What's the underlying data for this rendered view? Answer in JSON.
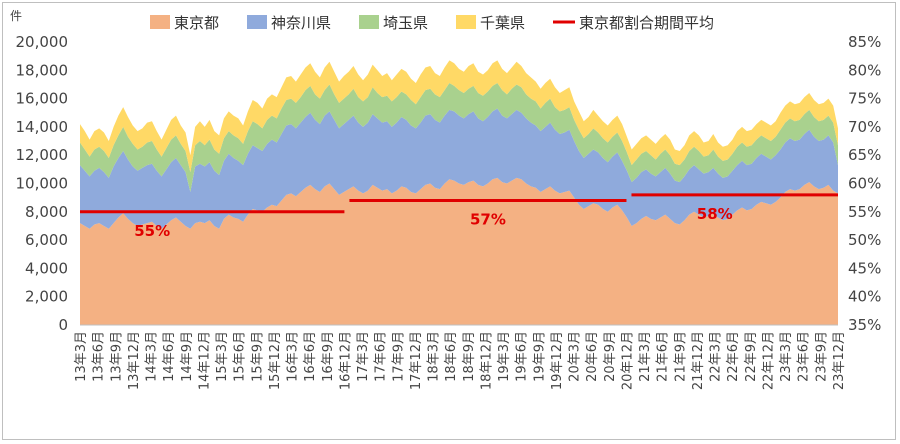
{
  "chart_data": {
    "type": "area",
    "stacked": true,
    "unit_label": "件",
    "yticks_left": [
      "0",
      "2,000",
      "4,000",
      "6,000",
      "8,000",
      "10,000",
      "12,000",
      "14,000",
      "16,000",
      "18,000",
      "20,000"
    ],
    "yticks_right": [
      "35%",
      "40%",
      "45%",
      "50%",
      "55%",
      "60%",
      "65%",
      "70%",
      "75%",
      "80%",
      "85%"
    ],
    "ylim_left": [
      0,
      20000
    ],
    "ylim_right": [
      0.35,
      0.85
    ],
    "x_tick_labels": [
      "13年3月",
      "13年6月",
      "13年9月",
      "13年12月",
      "14年3月",
      "14年6月",
      "14年9月",
      "14年12月",
      "15年3月",
      "15年6月",
      "15年9月",
      "15年12月",
      "16年3月",
      "16年6月",
      "16年9月",
      "16年12月",
      "17年3月",
      "17年6月",
      "17年9月",
      "17年12月",
      "18年3月",
      "18年6月",
      "18年9月",
      "18年12月",
      "19年3月",
      "19年6月",
      "19年9月",
      "19年12月",
      "20年3月",
      "20年6月",
      "20年9月",
      "20年12月",
      "21年3月",
      "21年6月",
      "21年9月",
      "21年12月",
      "22年3月",
      "22年6月",
      "22年9月",
      "22年12月",
      "23年3月",
      "23年6月",
      "23年9月",
      "23年12月"
    ],
    "legend_position": "top",
    "series": [
      {
        "name": "東京都",
        "color": "#f4b183",
        "values": [
          7200,
          7000,
          6800,
          7100,
          7200,
          7000,
          6800,
          7200,
          7600,
          7900,
          7500,
          7200,
          7000,
          7100,
          7200,
          7300,
          7000,
          6800,
          7100,
          7400,
          7600,
          7300,
          7000,
          6800,
          7200,
          7300,
          7200,
          7400,
          7000,
          6800,
          7500,
          7800,
          7600,
          7500,
          7300,
          7800,
          8200,
          8100,
          8000,
          8300,
          8500,
          8400,
          8800,
          9200,
          9300,
          9100,
          9400,
          9700,
          9900,
          9600,
          9400,
          9800,
          10000,
          9600,
          9200,
          9400,
          9600,
          9800,
          9500,
          9300,
          9500,
          9900,
          9700,
          9500,
          9600,
          9300,
          9500,
          9800,
          9700,
          9400,
          9300,
          9600,
          9900,
          10000,
          9700,
          9600,
          10000,
          10300,
          10200,
          10000,
          9900,
          10100,
          10200,
          9900,
          9800,
          10000,
          10300,
          10400,
          10100,
          10000,
          10200,
          10400,
          10300,
          10000,
          9800,
          9700,
          9400,
          9600,
          9800,
          9500,
          9300,
          9400,
          9500,
          9000,
          8500,
          8200,
          8400,
          8600,
          8500,
          8200,
          8000,
          8300,
          8500,
          8100,
          7600,
          7000,
          7200,
          7500,
          7700,
          7500,
          7400,
          7600,
          7800,
          7500,
          7200,
          7100,
          7400,
          7800,
          8000,
          7800,
          7600,
          7700,
          7900,
          7600,
          7400,
          7500,
          7800,
          8100,
          8300,
          8100,
          8200,
          8500,
          8700,
          8600,
          8500,
          8700,
          9000,
          9400,
          9600,
          9500,
          9600,
          9900,
          10100,
          9800,
          9600,
          9700,
          9900,
          9500,
          9300
        ]
      },
      {
        "name": "神奈川県",
        "color": "#8faadc",
        "values": [
          4100,
          3900,
          3700,
          3800,
          3900,
          3800,
          3600,
          4000,
          4200,
          4400,
          4200,
          4000,
          3900,
          4000,
          4100,
          4100,
          3900,
          3700,
          3900,
          4100,
          4200,
          4000,
          3800,
          2600,
          4000,
          4100,
          4000,
          4100,
          3900,
          3800,
          4100,
          4300,
          4200,
          4100,
          4000,
          4300,
          4500,
          4400,
          4300,
          4500,
          4600,
          4500,
          4700,
          4900,
          4900,
          4800,
          4900,
          5000,
          5100,
          4900,
          4800,
          5000,
          5100,
          4900,
          4700,
          4800,
          4900,
          5000,
          4800,
          4700,
          4800,
          5000,
          4900,
          4800,
          4800,
          4700,
          4800,
          4900,
          4800,
          4700,
          4600,
          4700,
          4900,
          4900,
          4800,
          4700,
          4800,
          4900,
          4900,
          4800,
          4700,
          4800,
          4900,
          4700,
          4600,
          4700,
          4800,
          4900,
          4700,
          4600,
          4700,
          4800,
          4700,
          4600,
          4500,
          4400,
          4300,
          4400,
          4500,
          4300,
          4200,
          4200,
          4300,
          4000,
          3800,
          3600,
          3700,
          3800,
          3700,
          3600,
          3500,
          3600,
          3700,
          3500,
          3300,
          3100,
          3200,
          3300,
          3300,
          3200,
          3100,
          3200,
          3300,
          3200,
          3000,
          3000,
          3100,
          3200,
          3300,
          3200,
          3100,
          3100,
          3200,
          3100,
          3000,
          3000,
          3100,
          3200,
          3300,
          3200,
          3200,
          3300,
          3400,
          3300,
          3200,
          3300,
          3400,
          3500,
          3600,
          3500,
          3500,
          3600,
          3700,
          3500,
          3400,
          3400,
          3500,
          3400,
          2000
        ]
      },
      {
        "name": "埼玉県",
        "color": "#a9d18e",
        "values": [
          1600,
          1500,
          1400,
          1500,
          1500,
          1500,
          1400,
          1500,
          1600,
          1700,
          1600,
          1600,
          1500,
          1500,
          1600,
          1600,
          1500,
          1400,
          1500,
          1600,
          1600,
          1500,
          1500,
          1400,
          1500,
          1600,
          1500,
          1600,
          1500,
          1500,
          1600,
          1600,
          1600,
          1600,
          1500,
          1600,
          1700,
          1700,
          1600,
          1700,
          1700,
          1700,
          1800,
          1800,
          1800,
          1800,
          1800,
          1900,
          1900,
          1800,
          1800,
          1800,
          1900,
          1800,
          1800,
          1800,
          1800,
          1900,
          1800,
          1800,
          1800,
          1900,
          1800,
          1800,
          1800,
          1800,
          1800,
          1800,
          1800,
          1800,
          1700,
          1800,
          1800,
          1800,
          1800,
          1800,
          1800,
          1900,
          1800,
          1800,
          1800,
          1800,
          1800,
          1800,
          1800,
          1800,
          1800,
          1800,
          1800,
          1700,
          1800,
          1800,
          1800,
          1700,
          1700,
          1700,
          1600,
          1700,
          1700,
          1600,
          1600,
          1600,
          1600,
          1500,
          1500,
          1400,
          1400,
          1500,
          1400,
          1400,
          1400,
          1400,
          1400,
          1400,
          1300,
          1200,
          1300,
          1300,
          1300,
          1300,
          1200,
          1300,
          1300,
          1300,
          1200,
          1200,
          1200,
          1300,
          1300,
          1300,
          1200,
          1200,
          1300,
          1200,
          1200,
          1200,
          1200,
          1300,
          1300,
          1300,
          1300,
          1300,
          1300,
          1300,
          1300,
          1300,
          1400,
          1400,
          1400,
          1400,
          1400,
          1400,
          1400,
          1400,
          1400,
          1400,
          1400,
          1400,
          1400
        ]
      },
      {
        "name": "千葉県",
        "color": "#ffd966",
        "values": [
          1300,
          1300,
          1200,
          1300,
          1300,
          1300,
          1200,
          1300,
          1400,
          1400,
          1400,
          1300,
          1300,
          1300,
          1400,
          1400,
          1300,
          1200,
          1300,
          1400,
          1400,
          1300,
          1300,
          1200,
          1300,
          1400,
          1300,
          1400,
          1300,
          1300,
          1400,
          1400,
          1400,
          1400,
          1300,
          1400,
          1500,
          1500,
          1400,
          1500,
          1500,
          1500,
          1500,
          1600,
          1600,
          1500,
          1600,
          1600,
          1600,
          1600,
          1500,
          1600,
          1600,
          1600,
          1500,
          1600,
          1600,
          1600,
          1600,
          1500,
          1600,
          1600,
          1600,
          1500,
          1600,
          1500,
          1600,
          1600,
          1600,
          1500,
          1500,
          1600,
          1600,
          1600,
          1500,
          1500,
          1600,
          1600,
          1600,
          1500,
          1500,
          1600,
          1600,
          1500,
          1500,
          1500,
          1600,
          1600,
          1500,
          1500,
          1500,
          1600,
          1500,
          1500,
          1500,
          1400,
          1400,
          1400,
          1400,
          1400,
          1300,
          1400,
          1400,
          1300,
          1300,
          1200,
          1200,
          1300,
          1200,
          1200,
          1200,
          1200,
          1200,
          1200,
          1100,
          1100,
          1100,
          1100,
          1100,
          1100,
          1100,
          1100,
          1100,
          1100,
          1000,
          1000,
          1000,
          1100,
          1100,
          1100,
          1000,
          1000,
          1100,
          1000,
          1000,
          1000,
          1000,
          1100,
          1100,
          1100,
          1100,
          1100,
          1100,
          1100,
          1100,
          1100,
          1200,
          1200,
          1200,
          1200,
          1200,
          1200,
          1200,
          1200,
          1200,
          1200,
          1200,
          1200,
          1200
        ]
      }
    ],
    "average_line": {
      "name": "東京都割合期間平均",
      "color": "#e00000",
      "segments": [
        {
          "from": "13年3月",
          "to": "16年12月",
          "value": 0.55,
          "label": "55%"
        },
        {
          "from": "17年1月",
          "to": "20年12月",
          "value": 0.57,
          "label": "57%"
        },
        {
          "from": "21年1月",
          "to": "23年12月",
          "value": 0.58,
          "label": "58%"
        }
      ]
    }
  }
}
